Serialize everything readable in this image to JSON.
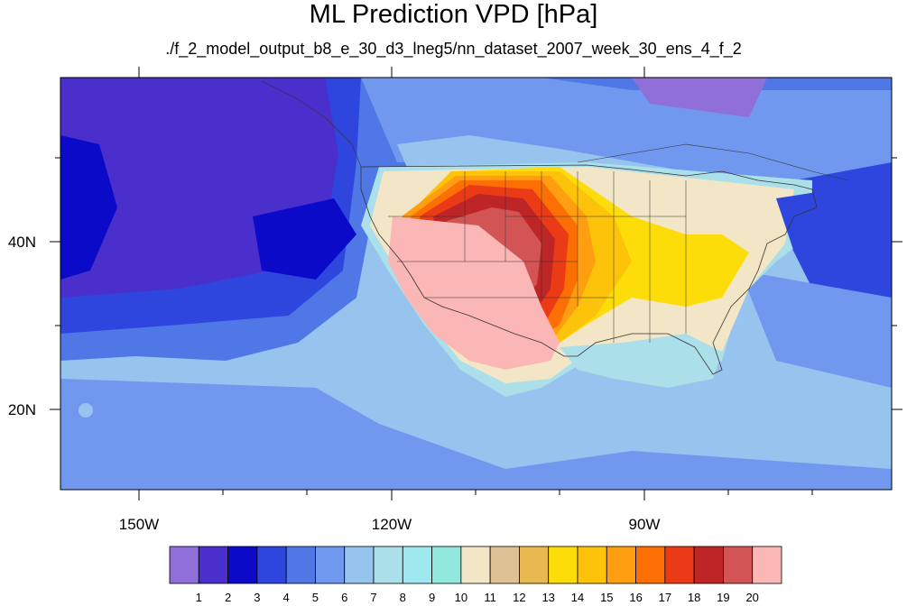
{
  "title": "ML Prediction VPD [hPa]",
  "subtitle": "./f_2_model_output_b8_e_30_d3_lneg5/nn_dataset_2007_week_30_ens_4_f_2",
  "axes": {
    "lon_labels": [
      "150W",
      "120W",
      "90W"
    ],
    "lat_labels": [
      "40N",
      "20N"
    ]
  },
  "colorbar": {
    "colors": [
      "#9070d8",
      "#4a2fcc",
      "#0a0ac8",
      "#2e46de",
      "#4f78e6",
      "#6f98ee",
      "#96c4ee",
      "#abe0ea",
      "#9ee8f0",
      "#90e8dc",
      "#f3e6c6",
      "#dfc293",
      "#e8b851",
      "#fcdd0a",
      "#fdc20a",
      "#fe9e10",
      "#fb6f05",
      "#ea3b16",
      "#bd2526",
      "#d25454",
      "#fbb6b6"
    ],
    "labels": [
      "1",
      "2",
      "3",
      "4",
      "5",
      "6",
      "7",
      "8",
      "9",
      "10",
      "11",
      "12",
      "13",
      "14",
      "15",
      "16",
      "17",
      "18",
      "19",
      "20"
    ]
  }
}
